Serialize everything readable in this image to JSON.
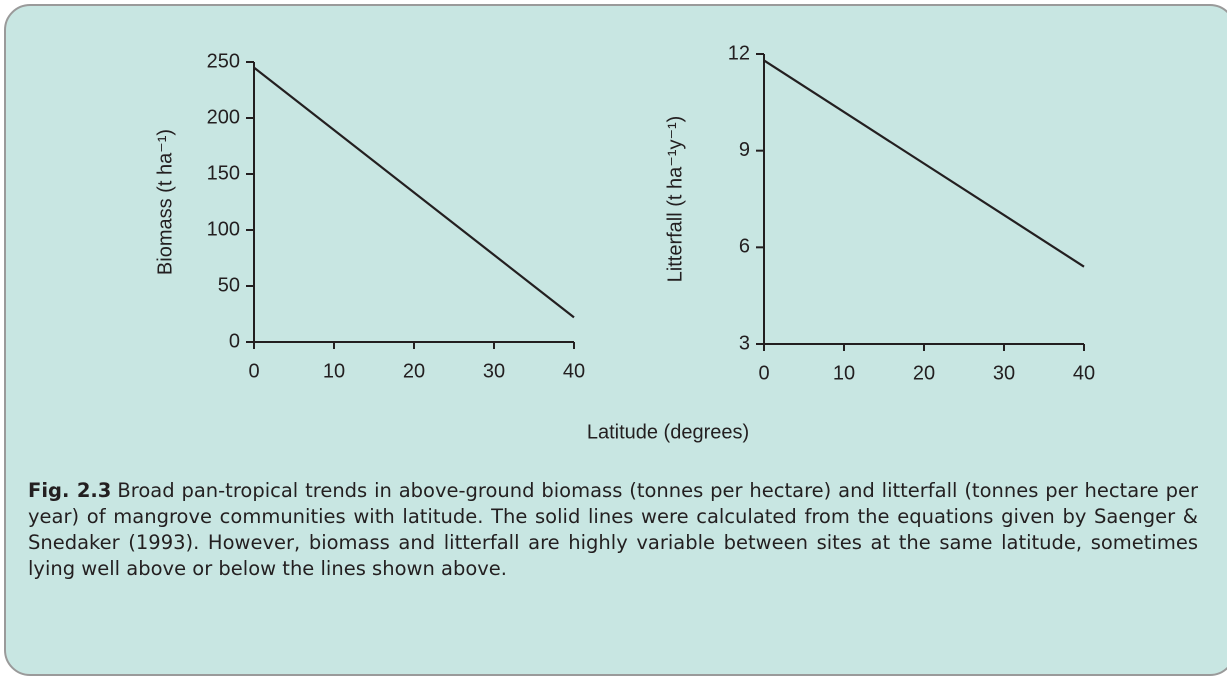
{
  "chart_data": [
    {
      "type": "line",
      "ylabel": "Biomass (t ha⁻¹)",
      "x": [
        0,
        40
      ],
      "series": [
        {
          "values": [
            245,
            22
          ],
          "color": "#231f20"
        }
      ],
      "xlim": [
        0,
        40
      ],
      "xticks": [
        0,
        10,
        20,
        30,
        40
      ],
      "ylim": [
        0,
        250
      ],
      "yticks": [
        0,
        50,
        100,
        150,
        200,
        250
      ]
    },
    {
      "type": "line",
      "ylabel": "Litterfall (t ha⁻¹y⁻¹)",
      "x": [
        0,
        40
      ],
      "series": [
        {
          "values": [
            11.8,
            5.4
          ],
          "color": "#231f20"
        }
      ],
      "xlim": [
        0,
        40
      ],
      "xticks": [
        0,
        10,
        20,
        30,
        40
      ],
      "ylim": [
        3,
        12
      ],
      "yticks": [
        3,
        6,
        9,
        12
      ]
    }
  ],
  "xlabel": "Latitude (degrees)",
  "caption": {
    "label": "Fig. 2.3",
    "text": "Broad pan-tropical trends in above-ground biomass (tonnes per hectare) and litterfall (tonnes per hectare per year) of mangrove communities with latitude. The solid lines were calculated from the equations given by Saenger & Snedaker (1993). However, biomass and litterfall are highly variable between sites at the same latitude, sometimes lying well above or below the lines shown above."
  }
}
